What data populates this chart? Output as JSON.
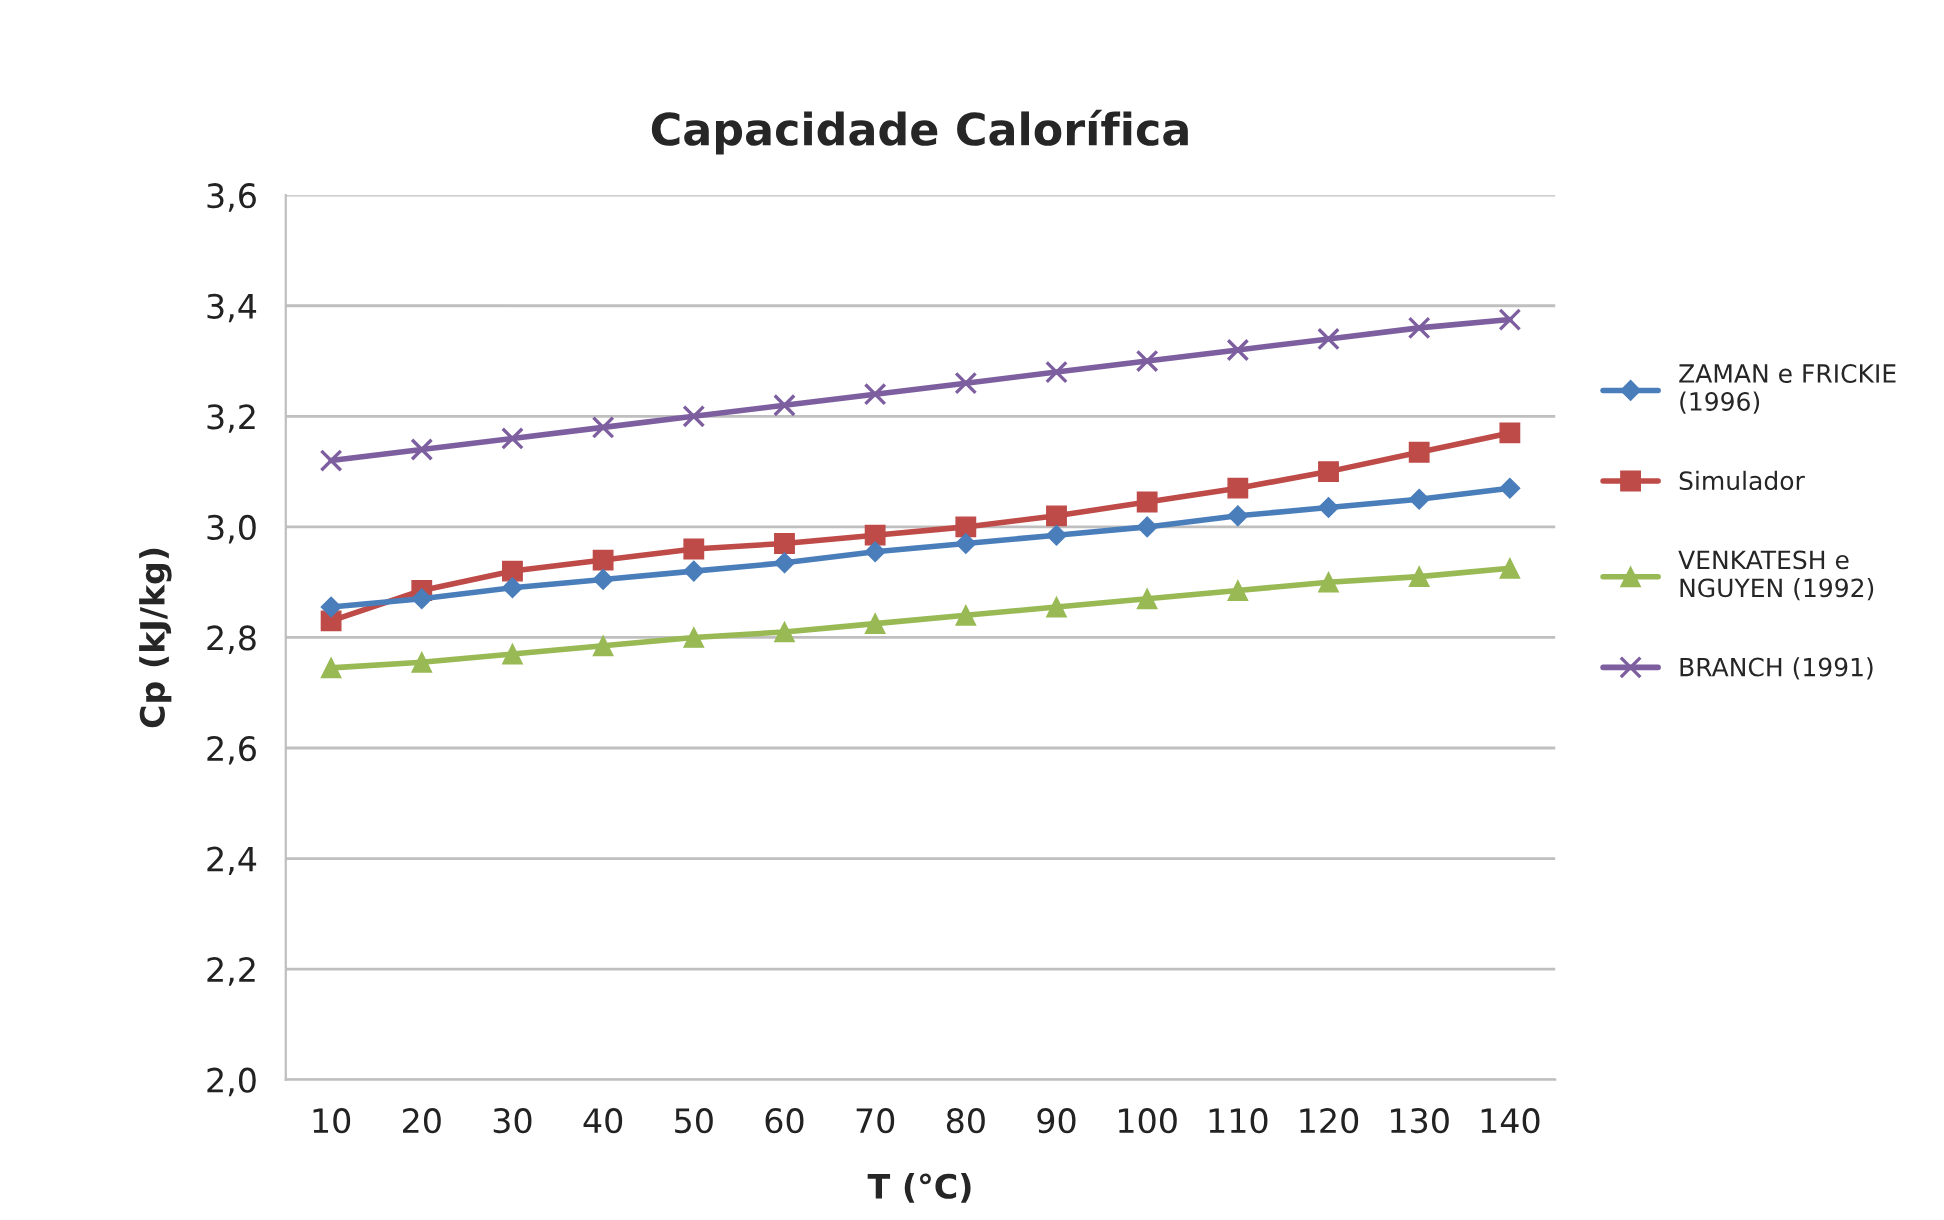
{
  "chart_data": {
    "type": "line",
    "title": "Capacidade Calorífica",
    "xlabel": "T (°C)",
    "ylabel": "Cp (kJ/kg)",
    "categories": [
      "10",
      "20",
      "30",
      "40",
      "50",
      "60",
      "70",
      "80",
      "90",
      "100",
      "110",
      "120",
      "130",
      "140"
    ],
    "series": [
      {
        "name": "ZAMAN e FRICKIE\n(1996)",
        "color": "#4a7ebb",
        "marker": "diamond",
        "values": [
          2.855,
          2.87,
          2.89,
          2.905,
          2.92,
          2.935,
          2.955,
          2.97,
          2.985,
          3.0,
          3.02,
          3.035,
          3.05,
          3.07
        ]
      },
      {
        "name": "Simulador",
        "color": "#be4b48",
        "marker": "square",
        "values": [
          2.83,
          2.885,
          2.92,
          2.94,
          2.96,
          2.97,
          2.985,
          3.0,
          3.02,
          3.045,
          3.07,
          3.1,
          3.135,
          3.17
        ]
      },
      {
        "name": "VENKATESH e\nNGUYEN (1992)",
        "color": "#98b954",
        "marker": "triangle",
        "values": [
          2.745,
          2.755,
          2.77,
          2.785,
          2.8,
          2.81,
          2.825,
          2.84,
          2.855,
          2.87,
          2.885,
          2.9,
          2.91,
          2.925
        ]
      },
      {
        "name": "BRANCH (1991)",
        "color": "#7d5fa0",
        "marker": "cross",
        "values": [
          3.12,
          3.14,
          3.16,
          3.18,
          3.2,
          3.22,
          3.24,
          3.26,
          3.28,
          3.3,
          3.32,
          3.34,
          3.36,
          3.375
        ]
      }
    ],
    "ylim": [
      2.0,
      3.6
    ],
    "yticks": [
      {
        "value": 2.0,
        "label": "2,0"
      },
      {
        "value": 2.2,
        "label": "2,2"
      },
      {
        "value": 2.4,
        "label": "2,4"
      },
      {
        "value": 2.6,
        "label": "2,6"
      },
      {
        "value": 2.8,
        "label": "2,8"
      },
      {
        "value": 3.0,
        "label": "3,0"
      },
      {
        "value": 3.2,
        "label": "3,2"
      },
      {
        "value": 3.4,
        "label": "3,4"
      },
      {
        "value": 3.6,
        "label": "3,6"
      }
    ],
    "grid": "y",
    "legend": "right",
    "line_style": "solid"
  }
}
